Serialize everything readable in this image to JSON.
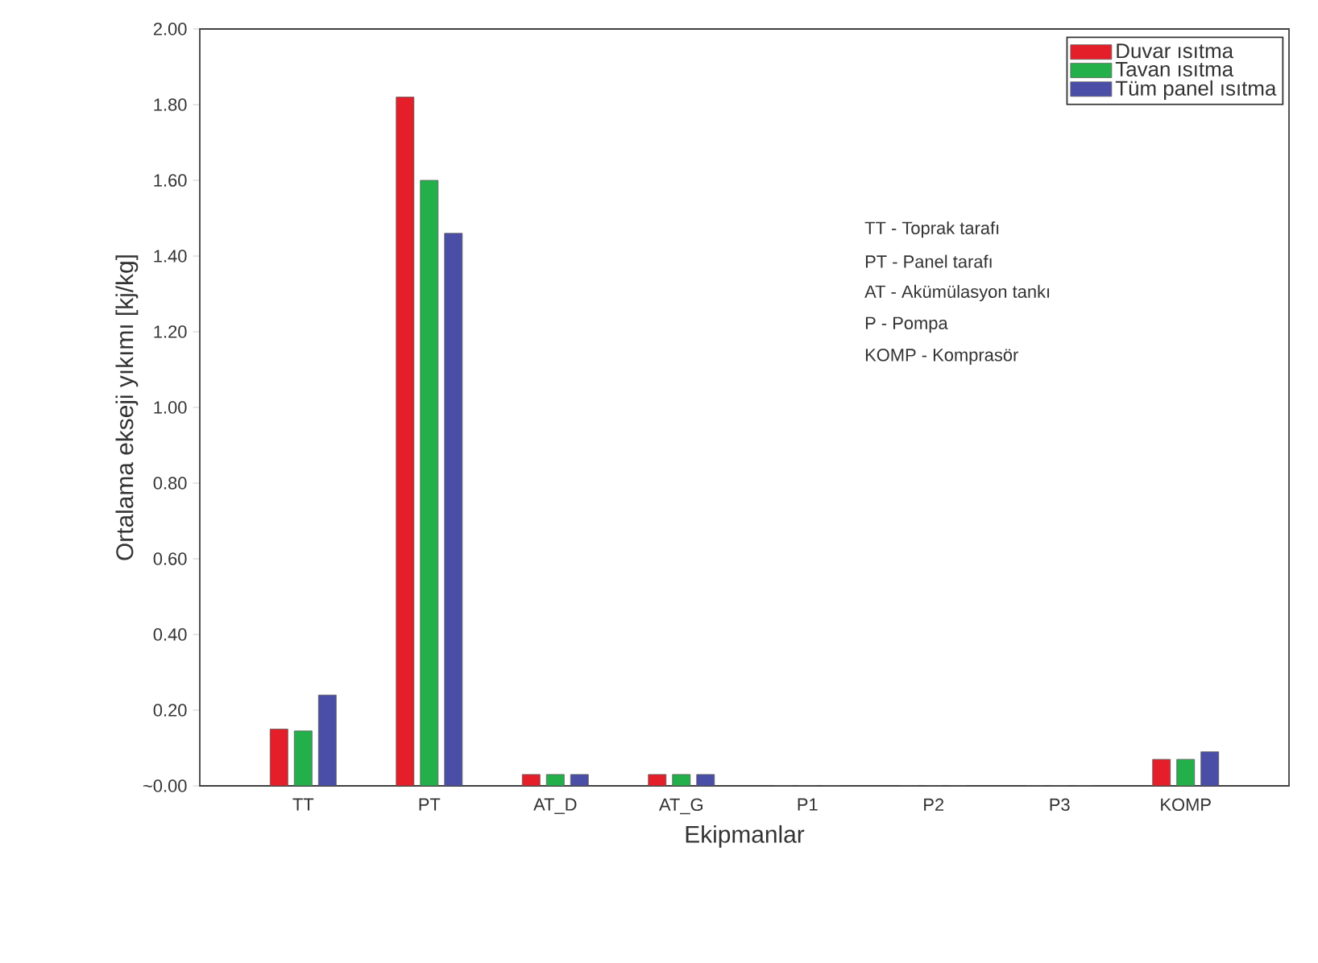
{
  "chart_data": {
    "type": "bar",
    "xlabel": "Ekipmanlar",
    "ylabel": "Ortalama ekseji yıkımı [kj/kg]",
    "categories": [
      "TT",
      "PT",
      "AT_D",
      "AT_G",
      "P1",
      "P2",
      "P3",
      "KOMP"
    ],
    "series": [
      {
        "name": "Duvar ısıtma",
        "color": "#e41f2a",
        "values": [
          0.15,
          1.82,
          0.03,
          0.03,
          0,
          0,
          0,
          0.07
        ]
      },
      {
        "name": "Tavan ısıtma",
        "color": "#23b04b",
        "values": [
          0.145,
          1.6,
          0.03,
          0.03,
          0,
          0,
          0,
          0.07
        ]
      },
      {
        "name": "Tüm panel ısıtma",
        "color": "#4a4ea6",
        "values": [
          0.24,
          1.46,
          0.03,
          0.03,
          0,
          0,
          0,
          0.09
        ]
      }
    ],
    "ylim": [
      0,
      2
    ],
    "yticks": [
      {
        "value": 0,
        "label": "~0.00"
      },
      {
        "value": 0.2,
        "label": "0.20"
      },
      {
        "value": 0.4,
        "label": "0.40"
      },
      {
        "value": 0.6,
        "label": "0.60"
      },
      {
        "value": 0.8,
        "label": "0.80"
      },
      {
        "value": 1.0,
        "label": "1.00"
      },
      {
        "value": 1.2,
        "label": "1.20"
      },
      {
        "value": 1.4,
        "label": "1.40"
      },
      {
        "value": 1.6,
        "label": "1.60"
      },
      {
        "value": 1.8,
        "label": "1.80"
      },
      {
        "value": 2.0,
        "label": "2.00"
      }
    ],
    "grid": false,
    "legend": "top right",
    "annotations": [
      "TT      - Toprak tarafı",
      "PT      - Panel tarafı",
      "AT       - Akümülasyon tankı",
      "P        - Pompa",
      "KOMP - Komprasör"
    ]
  }
}
